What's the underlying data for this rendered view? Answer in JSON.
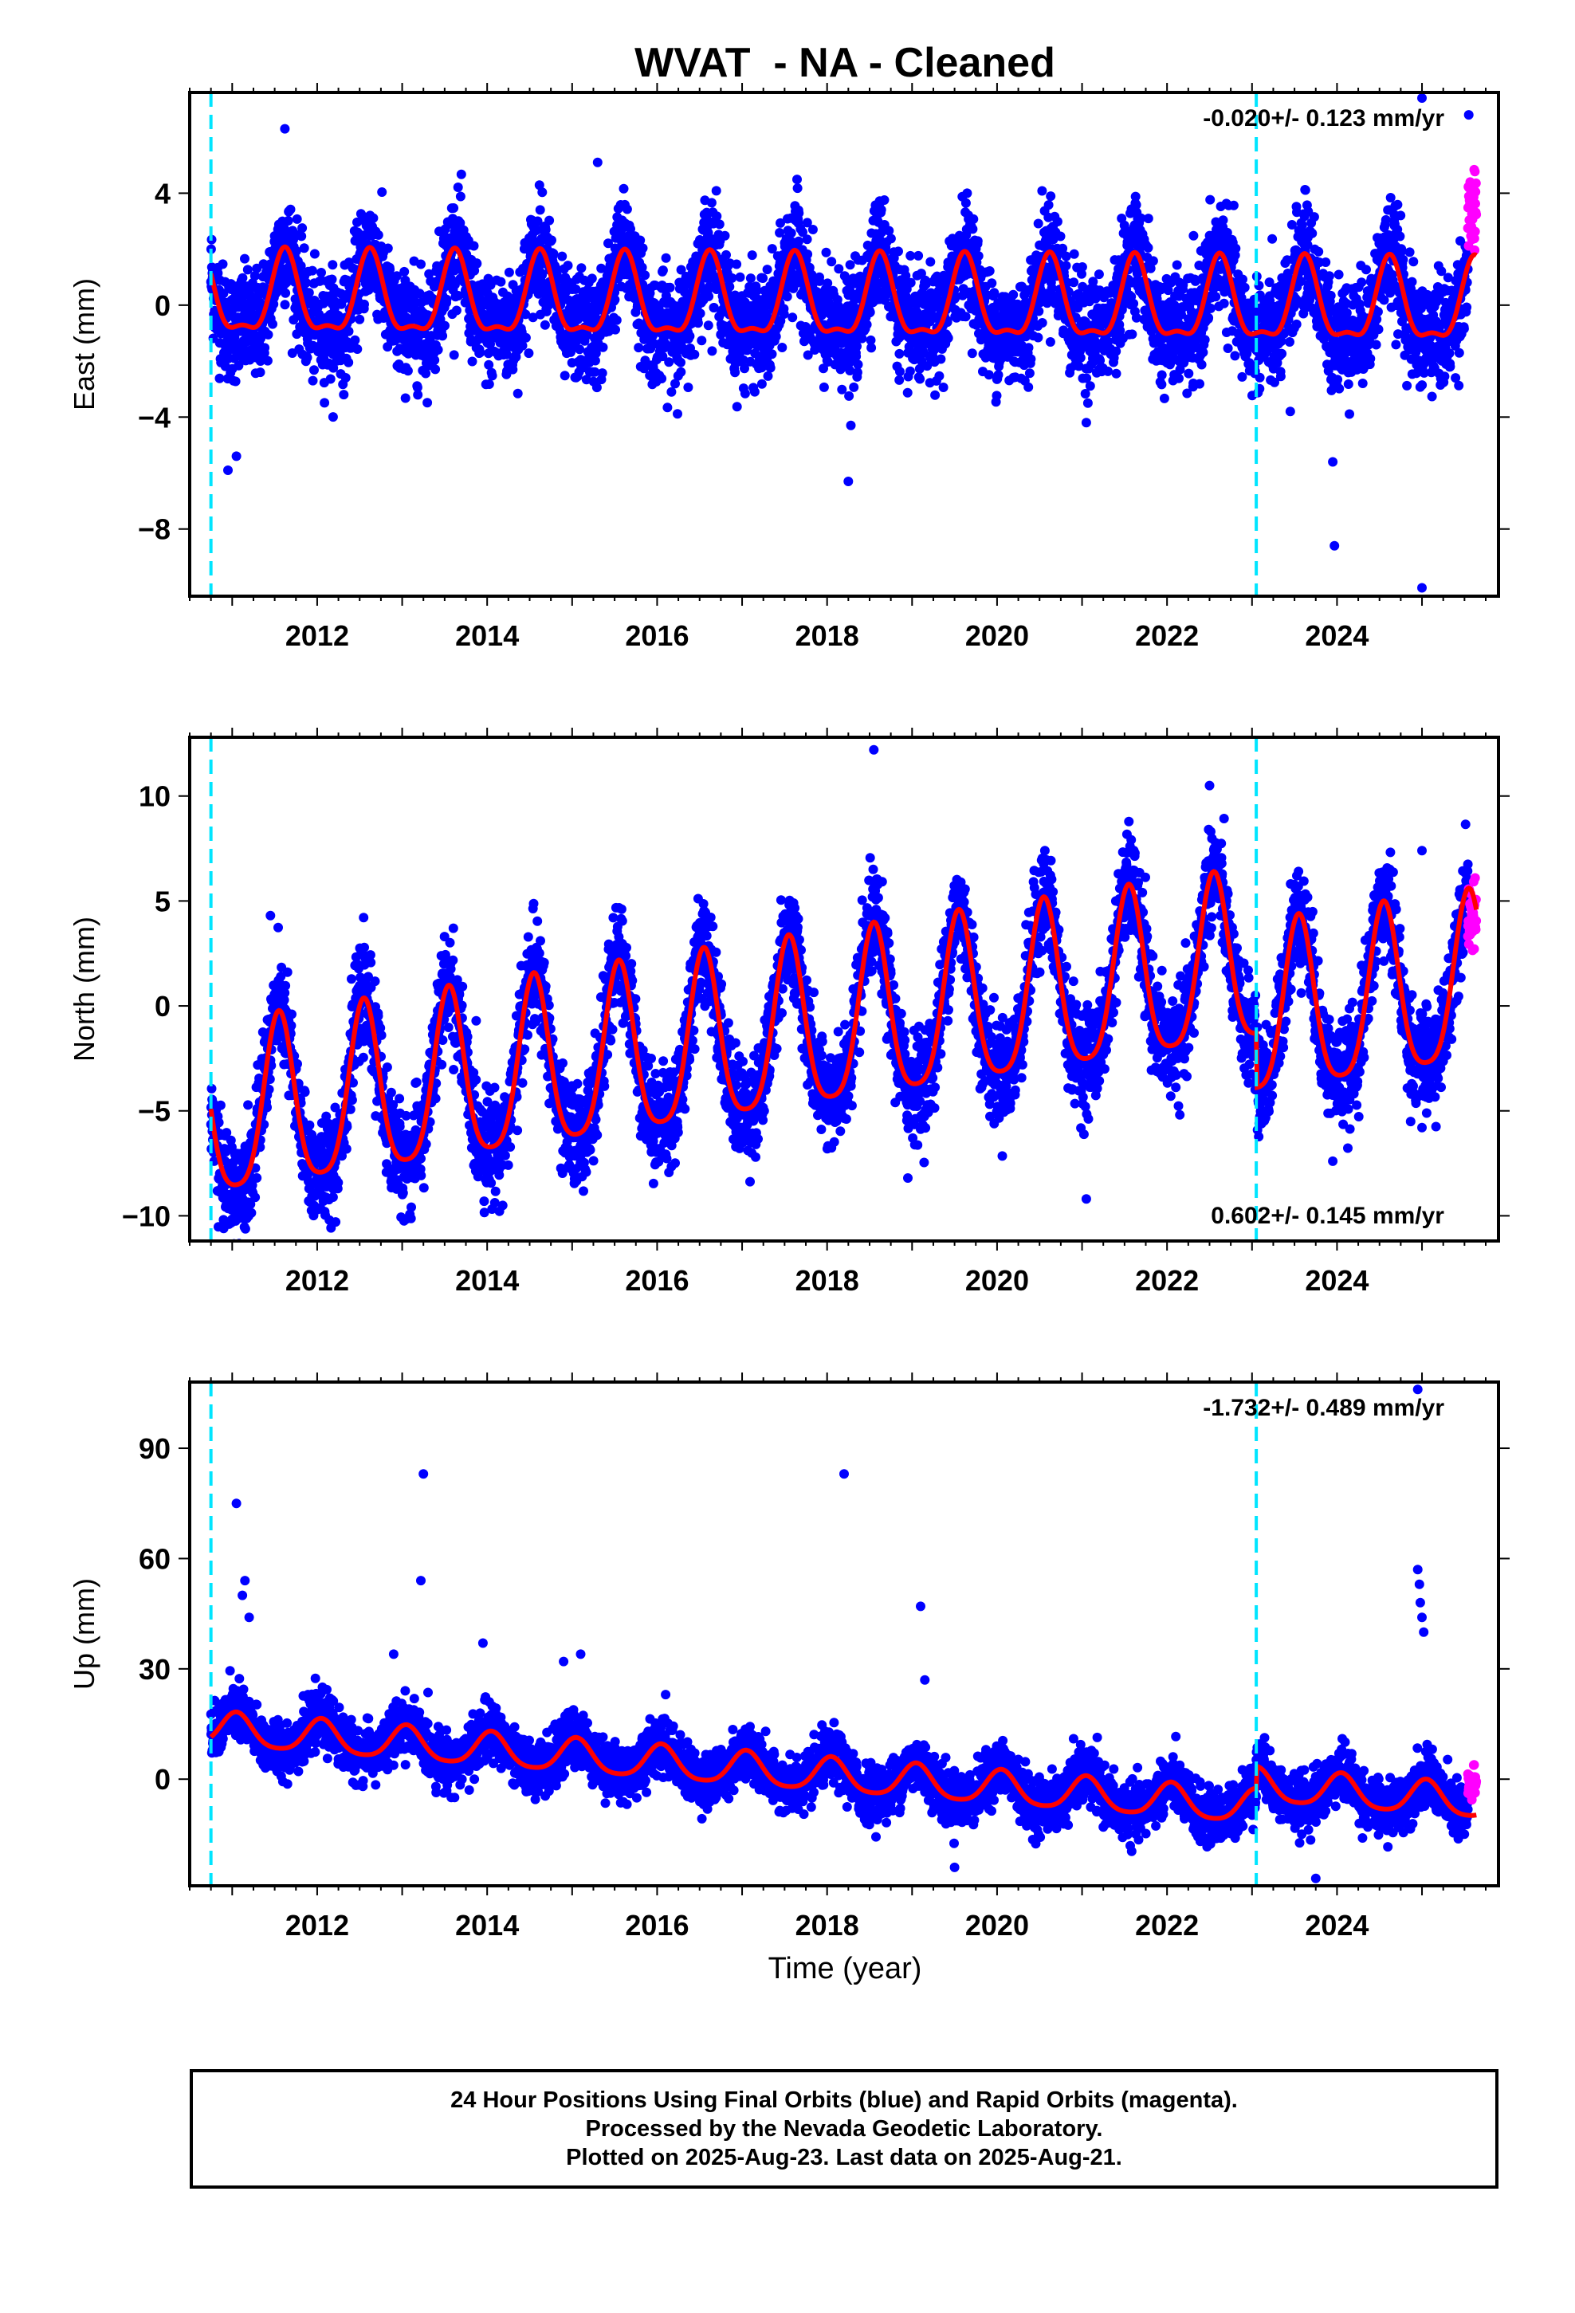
{
  "title": "WVAT  - NA - Cleaned",
  "xlabel": "Time (year)",
  "footer": {
    "line1": "24 Hour Positions Using Final Orbits (blue) and Rapid Orbits (magenta).",
    "line2": "Processed by the Nevada Geodetic Laboratory.",
    "line3": "Plotted on 2025-Aug-23. Last data on 2025-Aug-21."
  },
  "colors": {
    "final_points": "#0000ff",
    "rapid_points": "#ff00ff",
    "model_line": "#ff0000",
    "event_lines": "#00e5ff"
  },
  "chart_data": [
    {
      "type": "scatter",
      "name": "east",
      "ylabel": "East (mm)",
      "rate_label": "-0.020+/- 0.123 mm/yr",
      "rate_position": "top-right",
      "xlim": [
        2010.5,
        2025.9
      ],
      "ylim": [
        -10.4,
        7.6
      ],
      "yticks": [
        4,
        0,
        -4,
        -8
      ],
      "ytick_labels": [
        "4",
        "0",
        "−4",
        "−8"
      ],
      "xticks": [
        2012,
        2014,
        2016,
        2018,
        2020,
        2022,
        2024
      ],
      "grid": false,
      "event_lines_x": [
        2010.75,
        2023.05
      ],
      "data_start": 2010.75,
      "data_end": 2025.64,
      "rapid_start": 2025.54,
      "trend": {
        "offset": 0.2,
        "rate": -0.02
      },
      "seasonal": {
        "annual_amp": 1.4,
        "annual_peak": 0.62,
        "semiannual_amp": 0.5,
        "semiannual_peak": 0.62
      },
      "noise_sd": 0.95,
      "offsets": [],
      "outliers": [
        [
          2010.95,
          -5.9
        ],
        [
          2011.05,
          -5.4
        ],
        [
          2011.62,
          6.3
        ],
        [
          2018.25,
          -6.3
        ],
        [
          2018.28,
          -4.3
        ],
        [
          2021.05,
          -4.2
        ],
        [
          2023.95,
          -5.6
        ],
        [
          2023.97,
          -8.6
        ],
        [
          2025.0,
          -10.1
        ],
        [
          2025.0,
          7.4
        ],
        [
          2025.55,
          6.8
        ],
        [
          2015.3,
          5.1
        ],
        [
          2023.45,
          -3.8
        ]
      ]
    },
    {
      "type": "scatter",
      "name": "north",
      "ylabel": "North (mm)",
      "rate_label": "0.602+/- 0.145 mm/yr",
      "rate_position": "bottom-right",
      "xlim": [
        2010.5,
        2025.9
      ],
      "ylim": [
        -11.2,
        12.8
      ],
      "yticks": [
        10,
        5,
        0,
        -5,
        -10
      ],
      "ytick_labels": [
        "10",
        "5",
        "0",
        "−5",
        "−10"
      ],
      "xticks": [
        2012,
        2014,
        2016,
        2018,
        2020,
        2022,
        2024
      ],
      "grid": false,
      "event_lines_x": [
        2010.75,
        2023.05
      ],
      "data_start": 2010.75,
      "data_end": 2025.64,
      "rapid_start": 2025.54,
      "trend": {
        "offset": -5.5,
        "rate": 0.602
      },
      "seasonal": {
        "annual_amp": 4.0,
        "annual_peak": 0.55,
        "semiannual_amp": 0.8,
        "semiannual_peak": 0.55
      },
      "noise_sd": 1.2,
      "offsets": [
        {
          "x": 2023.05,
          "dy": -2.6
        }
      ],
      "outliers": [
        [
          2010.9,
          -10.6
        ],
        [
          2011.05,
          -10.0
        ],
        [
          2018.55,
          12.2
        ],
        [
          2018.95,
          -8.2
        ],
        [
          2021.05,
          -9.2
        ],
        [
          2022.5,
          10.5
        ],
        [
          2023.95,
          -7.4
        ],
        [
          2025.0,
          -5.8
        ],
        [
          2025.0,
          7.4
        ],
        [
          2015.05,
          -7.0
        ],
        [
          2011.45,
          4.3
        ]
      ]
    },
    {
      "type": "scatter",
      "name": "up",
      "ylabel": "Up (mm)",
      "rate_label": "-1.732+/- 0.489 mm/yr",
      "rate_position": "top-right",
      "xlim": [
        2010.5,
        2025.9
      ],
      "ylim": [
        -29,
        108
      ],
      "yticks": [
        90,
        60,
        30,
        0
      ],
      "ytick_labels": [
        "90",
        "60",
        "30",
        "0"
      ],
      "xticks": [
        2012,
        2014,
        2016,
        2018,
        2020,
        2022,
        2024
      ],
      "grid": false,
      "event_lines_x": [
        2010.75,
        2023.05
      ],
      "data_start": 2010.75,
      "data_end": 2025.64,
      "rapid_start": 2025.54,
      "trend": {
        "offset": 13.5,
        "rate": -1.732
      },
      "seasonal": {
        "annual_amp": 4.5,
        "annual_peak": 0.05,
        "semiannual_amp": 0.8,
        "semiannual_peak": 0.05
      },
      "noise_sd": 3.6,
      "offsets": [
        {
          "x": 2023.05,
          "dy": 6.0
        }
      ],
      "outliers": [
        [
          2011.05,
          75.0
        ],
        [
          2011.15,
          54.0
        ],
        [
          2011.12,
          50.0
        ],
        [
          2011.2,
          44.0
        ],
        [
          2013.25,
          83.0
        ],
        [
          2013.22,
          54.0
        ],
        [
          2013.95,
          37.0
        ],
        [
          2014.9,
          32.0
        ],
        [
          2015.1,
          34.0
        ],
        [
          2012.9,
          34.0
        ],
        [
          2018.2,
          83.0
        ],
        [
          2019.1,
          47.0
        ],
        [
          2019.15,
          27.0
        ],
        [
          2019.5,
          -24.0
        ],
        [
          2024.95,
          57.0
        ],
        [
          2024.97,
          53.0
        ],
        [
          2024.98,
          48.0
        ],
        [
          2025.0,
          44.0
        ],
        [
          2025.02,
          40.0
        ],
        [
          2024.95,
          106.0
        ],
        [
          2023.75,
          -27.0
        ],
        [
          2020.9,
          11.0
        ],
        [
          2016.1,
          23.0
        ]
      ]
    }
  ]
}
